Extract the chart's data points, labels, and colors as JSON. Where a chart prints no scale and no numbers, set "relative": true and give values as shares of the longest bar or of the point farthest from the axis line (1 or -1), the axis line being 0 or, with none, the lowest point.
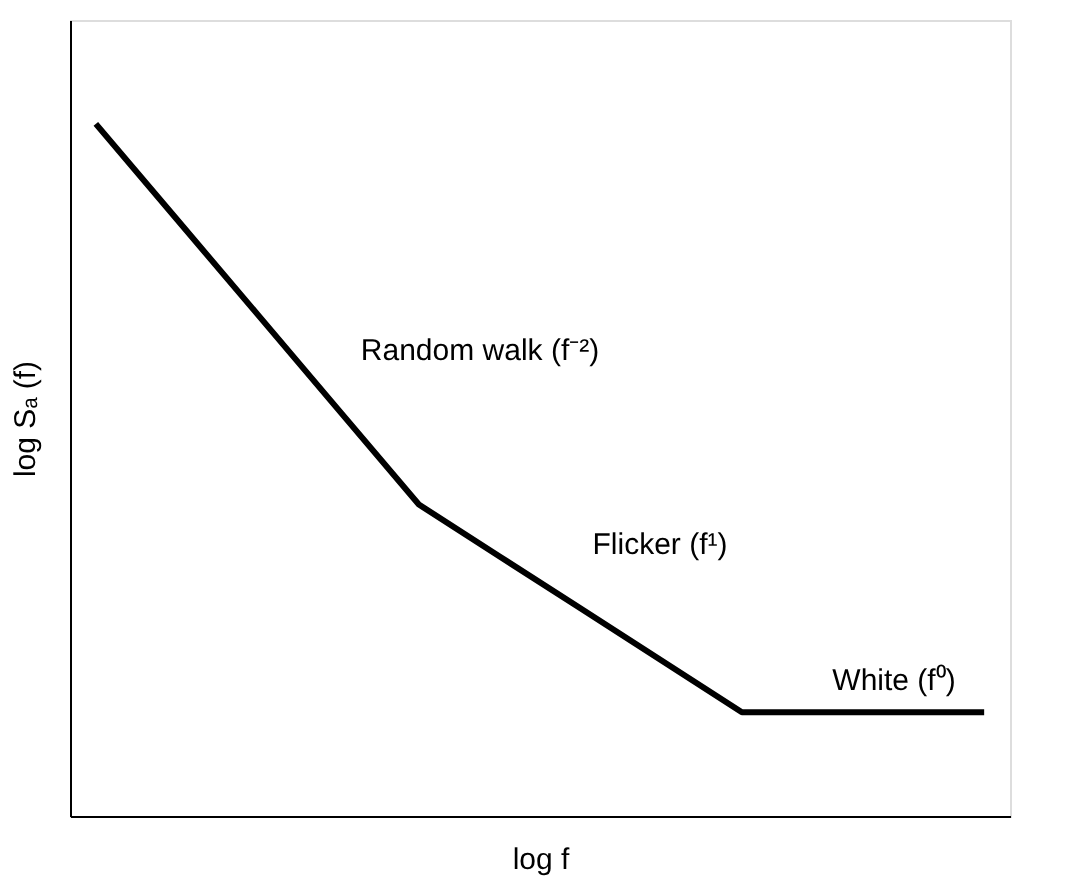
{
  "chart_data": {
    "type": "line",
    "relative": true,
    "xlabel": "log f",
    "ylabel": "log Sₐ (f)",
    "categories": [
      null,
      null,
      null,
      null,
      null,
      null,
      null,
      null,
      null,
      null,
      null,
      null
    ],
    "tick_labels": false,
    "grid": false,
    "marker": "none",
    "line_style": "solid",
    "series": [
      {
        "color": "#000000",
        "values": [
          1,
          0.8625,
          0.725,
          0.5875,
          0.45,
          0.375,
          0.3,
          0.225,
          0.15,
          0.15,
          0.15,
          0.15
        ]
      }
    ],
    "annotations": [
      "Random walk (f⁻²)",
      "Flicker (f¹)",
      "White (f⁰)"
    ]
  }
}
